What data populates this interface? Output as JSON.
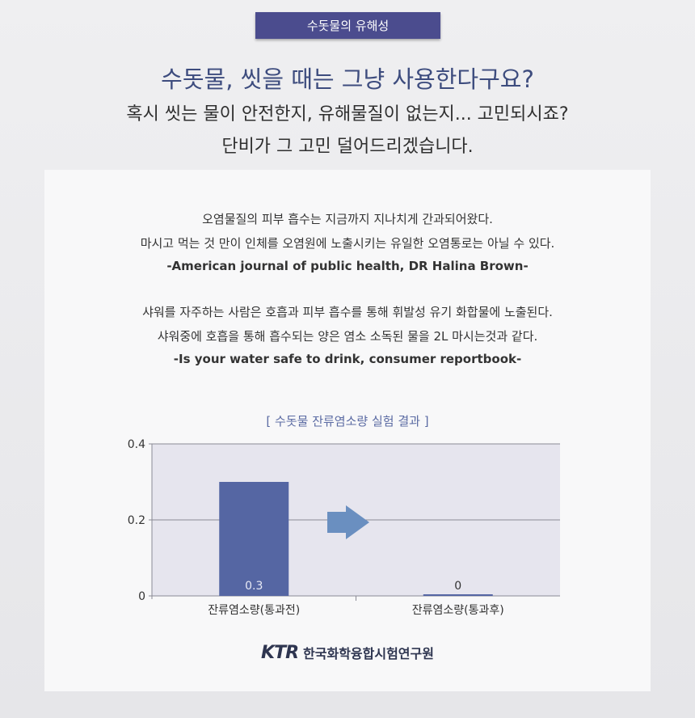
{
  "badge": "수돗물의 유해성",
  "title": "수돗물, 씻을 때는 그냥 사용한다구요?",
  "subtitle": [
    "혹시 씻는 물이 안전한지, 유해물질이 없는지... 고민되시죠?",
    "단비가 그 고민 덜어드리겠습니다."
  ],
  "quotes": [
    {
      "lines": [
        "오염물질의 피부 흡수는 지금까지 지나치게 간과되어왔다.",
        "마시고 먹는 것 만이 인체를 오염원에 노출시키는 유일한 오염통로는 아닐 수 있다."
      ],
      "source": "-American journal of public health, DR Halina Brown-"
    },
    {
      "lines": [
        "샤워를 자주하는 사람은 호흡과 피부 흡수를 통해 휘발성 유기 화합물에 노출된다.",
        "샤워중에 호흡을 통해 흡수되는 양은 염소 소독된 물을 2L 마시는것과 같다."
      ],
      "source": "-Is your water safe to drink, consumer reportbook-"
    }
  ],
  "chart_data": {
    "type": "bar",
    "title": "[ 수돗물 잔류염소량 실험 결과 ]",
    "categories": [
      "잔류염소량(통과전)",
      "잔류염소량(통과후)"
    ],
    "values": [
      0.3,
      0
    ],
    "data_labels": [
      "0.3",
      "0"
    ],
    "ylim": [
      0,
      0.4
    ],
    "yticks": [
      "0",
      "0.2",
      "0.4"
    ],
    "grid": true,
    "colors": {
      "bar": "#5566a3",
      "plot_bg": "#e6e5ee",
      "arrow": "#6a8fc0"
    }
  },
  "logo": {
    "mark": "KTR",
    "name": "한국화학융합시험연구원"
  }
}
